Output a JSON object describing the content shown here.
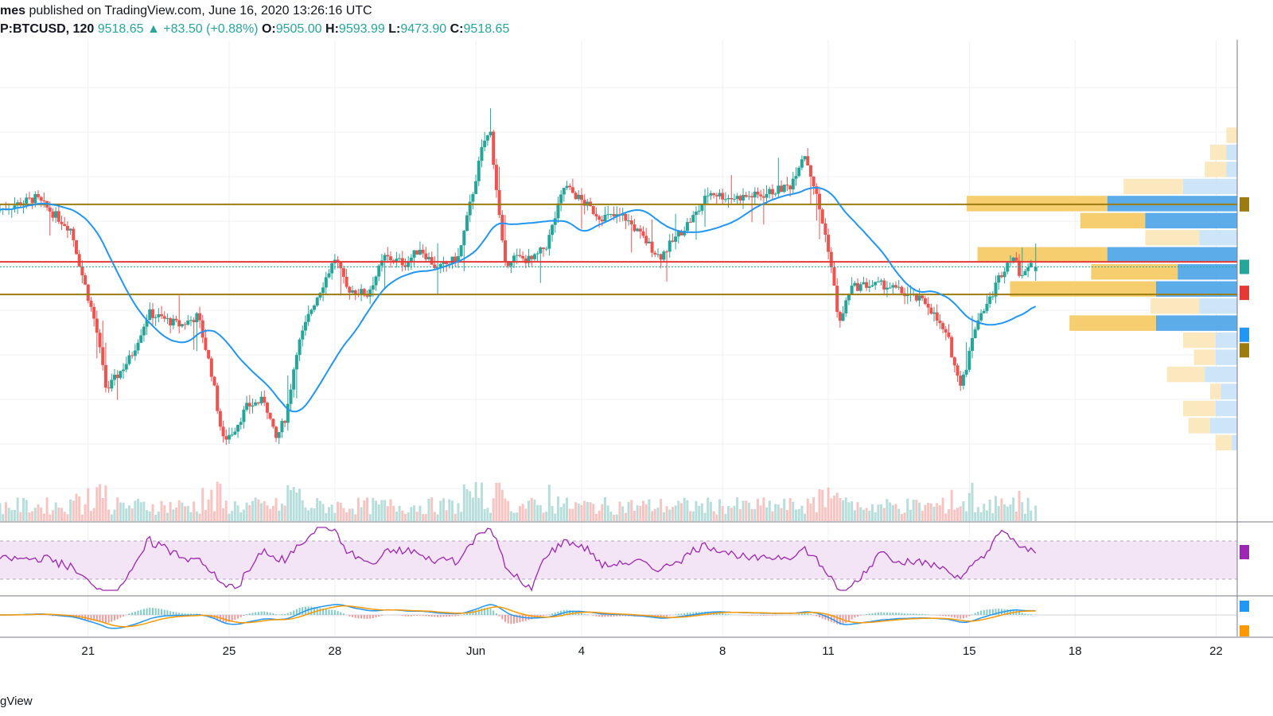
{
  "header": {
    "publisher_user": "mes",
    "published_text": "published on TradingView.com, June 16, 2020 13:26:16 UTC",
    "symbol": "P:BTCUSD, 120",
    "last_price": "9518.65",
    "change": "+83.50 (+0.88%)",
    "open_label": "O:",
    "open_value": "9505.00",
    "high_label": "H:",
    "high_value": "9593.99",
    "low_label": "L:",
    "low_value": "9473.90",
    "close_label": "C:",
    "close_value": "9518.65"
  },
  "footer": {
    "brand": "gView"
  },
  "colors": {
    "up": "#26a69a",
    "down": "#ef5350",
    "ma": "#2196f3",
    "resistance": "#9c7b10",
    "key_level": "#e53935",
    "rsi_line": "#9c27b0",
    "rsi_band": "#f3e5f5",
    "macd_line": "#2196f3",
    "signal_line": "#ff9800",
    "vp_up": "#f6c344",
    "vp_down": "#42a5f5"
  },
  "chart_data": {
    "type": "candlestick",
    "symbol": "BTCUSD",
    "interval": "120",
    "x_tick_labels": [
      "21",
      "25",
      "28",
      "Jun",
      "4",
      "8",
      "11",
      "15",
      "18",
      "22"
    ],
    "x_tick_days": [
      21,
      25,
      28,
      32,
      35,
      39,
      42,
      46,
      49,
      53
    ],
    "x_range_days": [
      18.5,
      53.6
    ],
    "y_range_price": [
      8700,
      10250
    ],
    "last_candle": {
      "open": 9505.0,
      "high": 9593.99,
      "low": 9473.9,
      "close": 9518.65,
      "change": 83.5,
      "change_pct": 0.88
    },
    "horizontal_levels": [
      {
        "price": 9720,
        "style": "resistance"
      },
      {
        "price": 9430,
        "style": "support"
      },
      {
        "price": 9535,
        "style": "key"
      }
    ],
    "price_path_days": [
      18.5,
      19.6,
      20.6,
      20.9,
      21.3,
      21.6,
      22.3,
      22.8,
      23.7,
      24.2,
      24.6,
      24.9,
      25.2,
      25.6,
      26.1,
      26.4,
      26.7,
      27.0,
      27.4,
      28.1,
      28.4,
      29.0,
      29.5,
      30.1,
      30.5,
      31.0,
      31.6,
      32.3,
      32.5,
      32.9,
      33.1,
      33.7,
      34.1,
      34.6,
      35.2,
      35.6,
      36.3,
      37.3,
      38.4,
      38.7,
      39.3,
      40.2,
      41.0,
      41.4,
      41.7,
      42.1,
      42.4,
      42.7,
      43.1,
      43.7,
      44.3,
      44.9,
      45.5,
      45.8,
      46.0,
      46.3,
      46.7,
      46.9,
      47.3,
      47.5,
      47.8
    ],
    "price_path": [
      9700,
      9740,
      9640,
      9500,
      9330,
      9120,
      9230,
      9370,
      9330,
      9360,
      9170,
      8960,
      8990,
      9070,
      9090,
      8960,
      9040,
      9250,
      9380,
      9550,
      9450,
      9430,
      9550,
      9530,
      9580,
      9510,
      9550,
      9920,
      9950,
      9520,
      9550,
      9540,
      9590,
      9780,
      9720,
      9680,
      9680,
      9550,
      9700,
      9760,
      9740,
      9750,
      9780,
      9890,
      9770,
      9570,
      9330,
      9450,
      9460,
      9460,
      9430,
      9400,
      9280,
      9140,
      9200,
      9350,
      9420,
      9480,
      9560,
      9500,
      9519
    ]
  }
}
